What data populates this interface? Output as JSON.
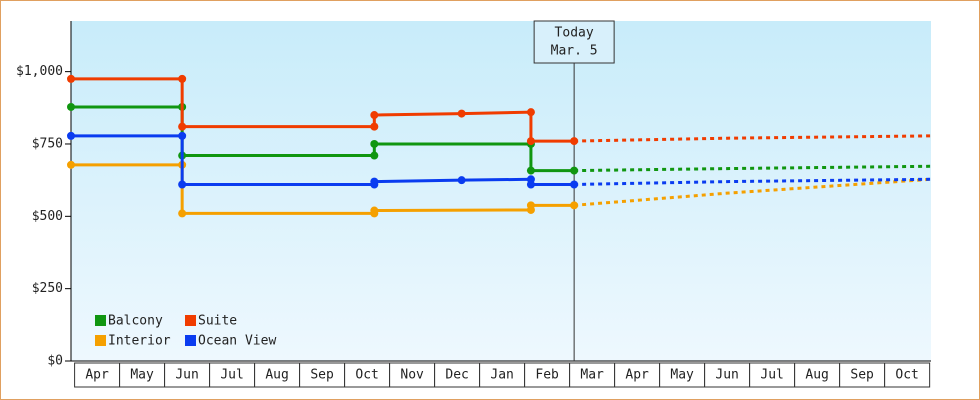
{
  "chart_data": {
    "type": "step-line",
    "categories": [
      "Apr",
      "May",
      "Jun",
      "Jul",
      "Aug",
      "Sep",
      "Oct",
      "Nov",
      "Dec",
      "Jan",
      "Feb",
      "Mar",
      "Apr",
      "May",
      "Jun",
      "Jul",
      "Aug",
      "Sep",
      "Oct"
    ],
    "xlim": [
      -0.58,
      18.53
    ],
    "ylim": [
      0,
      1175
    ],
    "yticks": [
      {
        "value": 0,
        "label": "$0"
      },
      {
        "value": 250,
        "label": "$250"
      },
      {
        "value": 500,
        "label": "$500"
      },
      {
        "value": 750,
        "label": "$750"
      },
      {
        "value": 1000,
        "label": "$1,000"
      }
    ],
    "today": {
      "x": 10.6,
      "label": [
        "Today",
        "Mar. 5"
      ]
    },
    "series": [
      {
        "name": "Balcony",
        "color": "#109610",
        "x": [
          -0.58,
          1.89,
          1.89,
          6.16,
          6.16,
          9.64,
          9.64,
          10.6
        ],
        "values": [
          878,
          878,
          710,
          710,
          750,
          750,
          658,
          658
        ],
        "forecast_x": [
          10.6,
          14,
          18.53
        ],
        "forecast_values": [
          658,
          665,
          673
        ]
      },
      {
        "name": "Suite",
        "color": "#f03c00",
        "x": [
          -0.58,
          1.89,
          1.89,
          6.16,
          6.16,
          8.1,
          9.64,
          9.64,
          10.6
        ],
        "values": [
          975,
          975,
          810,
          810,
          850,
          855,
          860,
          760,
          760
        ],
        "forecast_x": [
          10.6,
          14,
          18.53
        ],
        "forecast_values": [
          760,
          770,
          778
        ]
      },
      {
        "name": "Interior",
        "color": "#f5a000",
        "x": [
          -0.58,
          1.89,
          1.89,
          6.16,
          6.16,
          9.64,
          9.64,
          10.6
        ],
        "values": [
          678,
          678,
          510,
          510,
          520,
          522,
          538,
          538
        ],
        "forecast_x": [
          10.6,
          14,
          18.53
        ],
        "forecast_values": [
          538,
          580,
          628
        ]
      },
      {
        "name": "Ocean View",
        "color": "#0a3cf0",
        "x": [
          -0.58,
          1.89,
          1.89,
          6.16,
          6.16,
          8.1,
          9.64,
          9.64,
          10.6
        ],
        "values": [
          778,
          778,
          610,
          610,
          620,
          625,
          628,
          610,
          610
        ],
        "forecast_x": [
          10.6,
          14,
          18.53
        ],
        "forecast_values": [
          610,
          620,
          628
        ]
      }
    ]
  }
}
